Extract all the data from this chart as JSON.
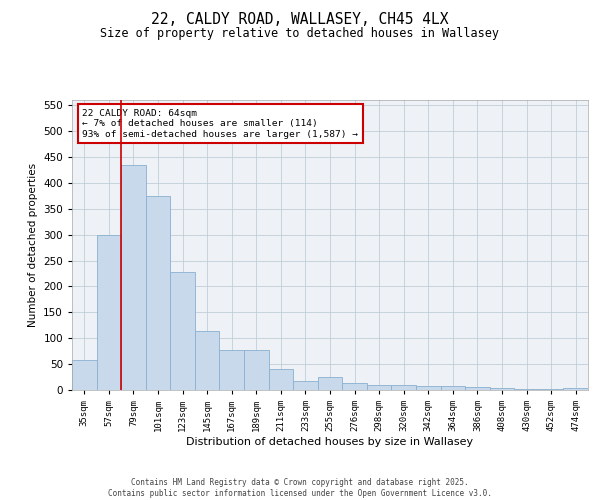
{
  "title_line1": "22, CALDY ROAD, WALLASEY, CH45 4LX",
  "title_line2": "Size of property relative to detached houses in Wallasey",
  "xlabel": "Distribution of detached houses by size in Wallasey",
  "ylabel": "Number of detached properties",
  "categories": [
    "35sqm",
    "57sqm",
    "79sqm",
    "101sqm",
    "123sqm",
    "145sqm",
    "167sqm",
    "189sqm",
    "211sqm",
    "233sqm",
    "255sqm",
    "276sqm",
    "298sqm",
    "320sqm",
    "342sqm",
    "364sqm",
    "386sqm",
    "408sqm",
    "430sqm",
    "452sqm",
    "474sqm"
  ],
  "values": [
    57,
    300,
    435,
    375,
    228,
    113,
    78,
    78,
    40,
    18,
    25,
    14,
    9,
    10,
    8,
    8,
    5,
    3,
    2,
    1,
    3
  ],
  "bar_color": "#c8d9ec",
  "bar_edge_color": "#8ab0d0",
  "bar_edge_width": 0.6,
  "vline_x": 1.5,
  "vline_color": "#cc0000",
  "annotation_text": "22 CALDY ROAD: 64sqm\n← 7% of detached houses are smaller (114)\n93% of semi-detached houses are larger (1,587) →",
  "annotation_box_color": "#ffffff",
  "annotation_box_edge_color": "#cc0000",
  "ylim": [
    0,
    560
  ],
  "yticks": [
    0,
    50,
    100,
    150,
    200,
    250,
    300,
    350,
    400,
    450,
    500,
    550
  ],
  "grid_color": "#c0cdd8",
  "bg_color": "#eef2f7",
  "footer_text": "Contains HM Land Registry data © Crown copyright and database right 2025.\nContains public sector information licensed under the Open Government Licence v3.0."
}
